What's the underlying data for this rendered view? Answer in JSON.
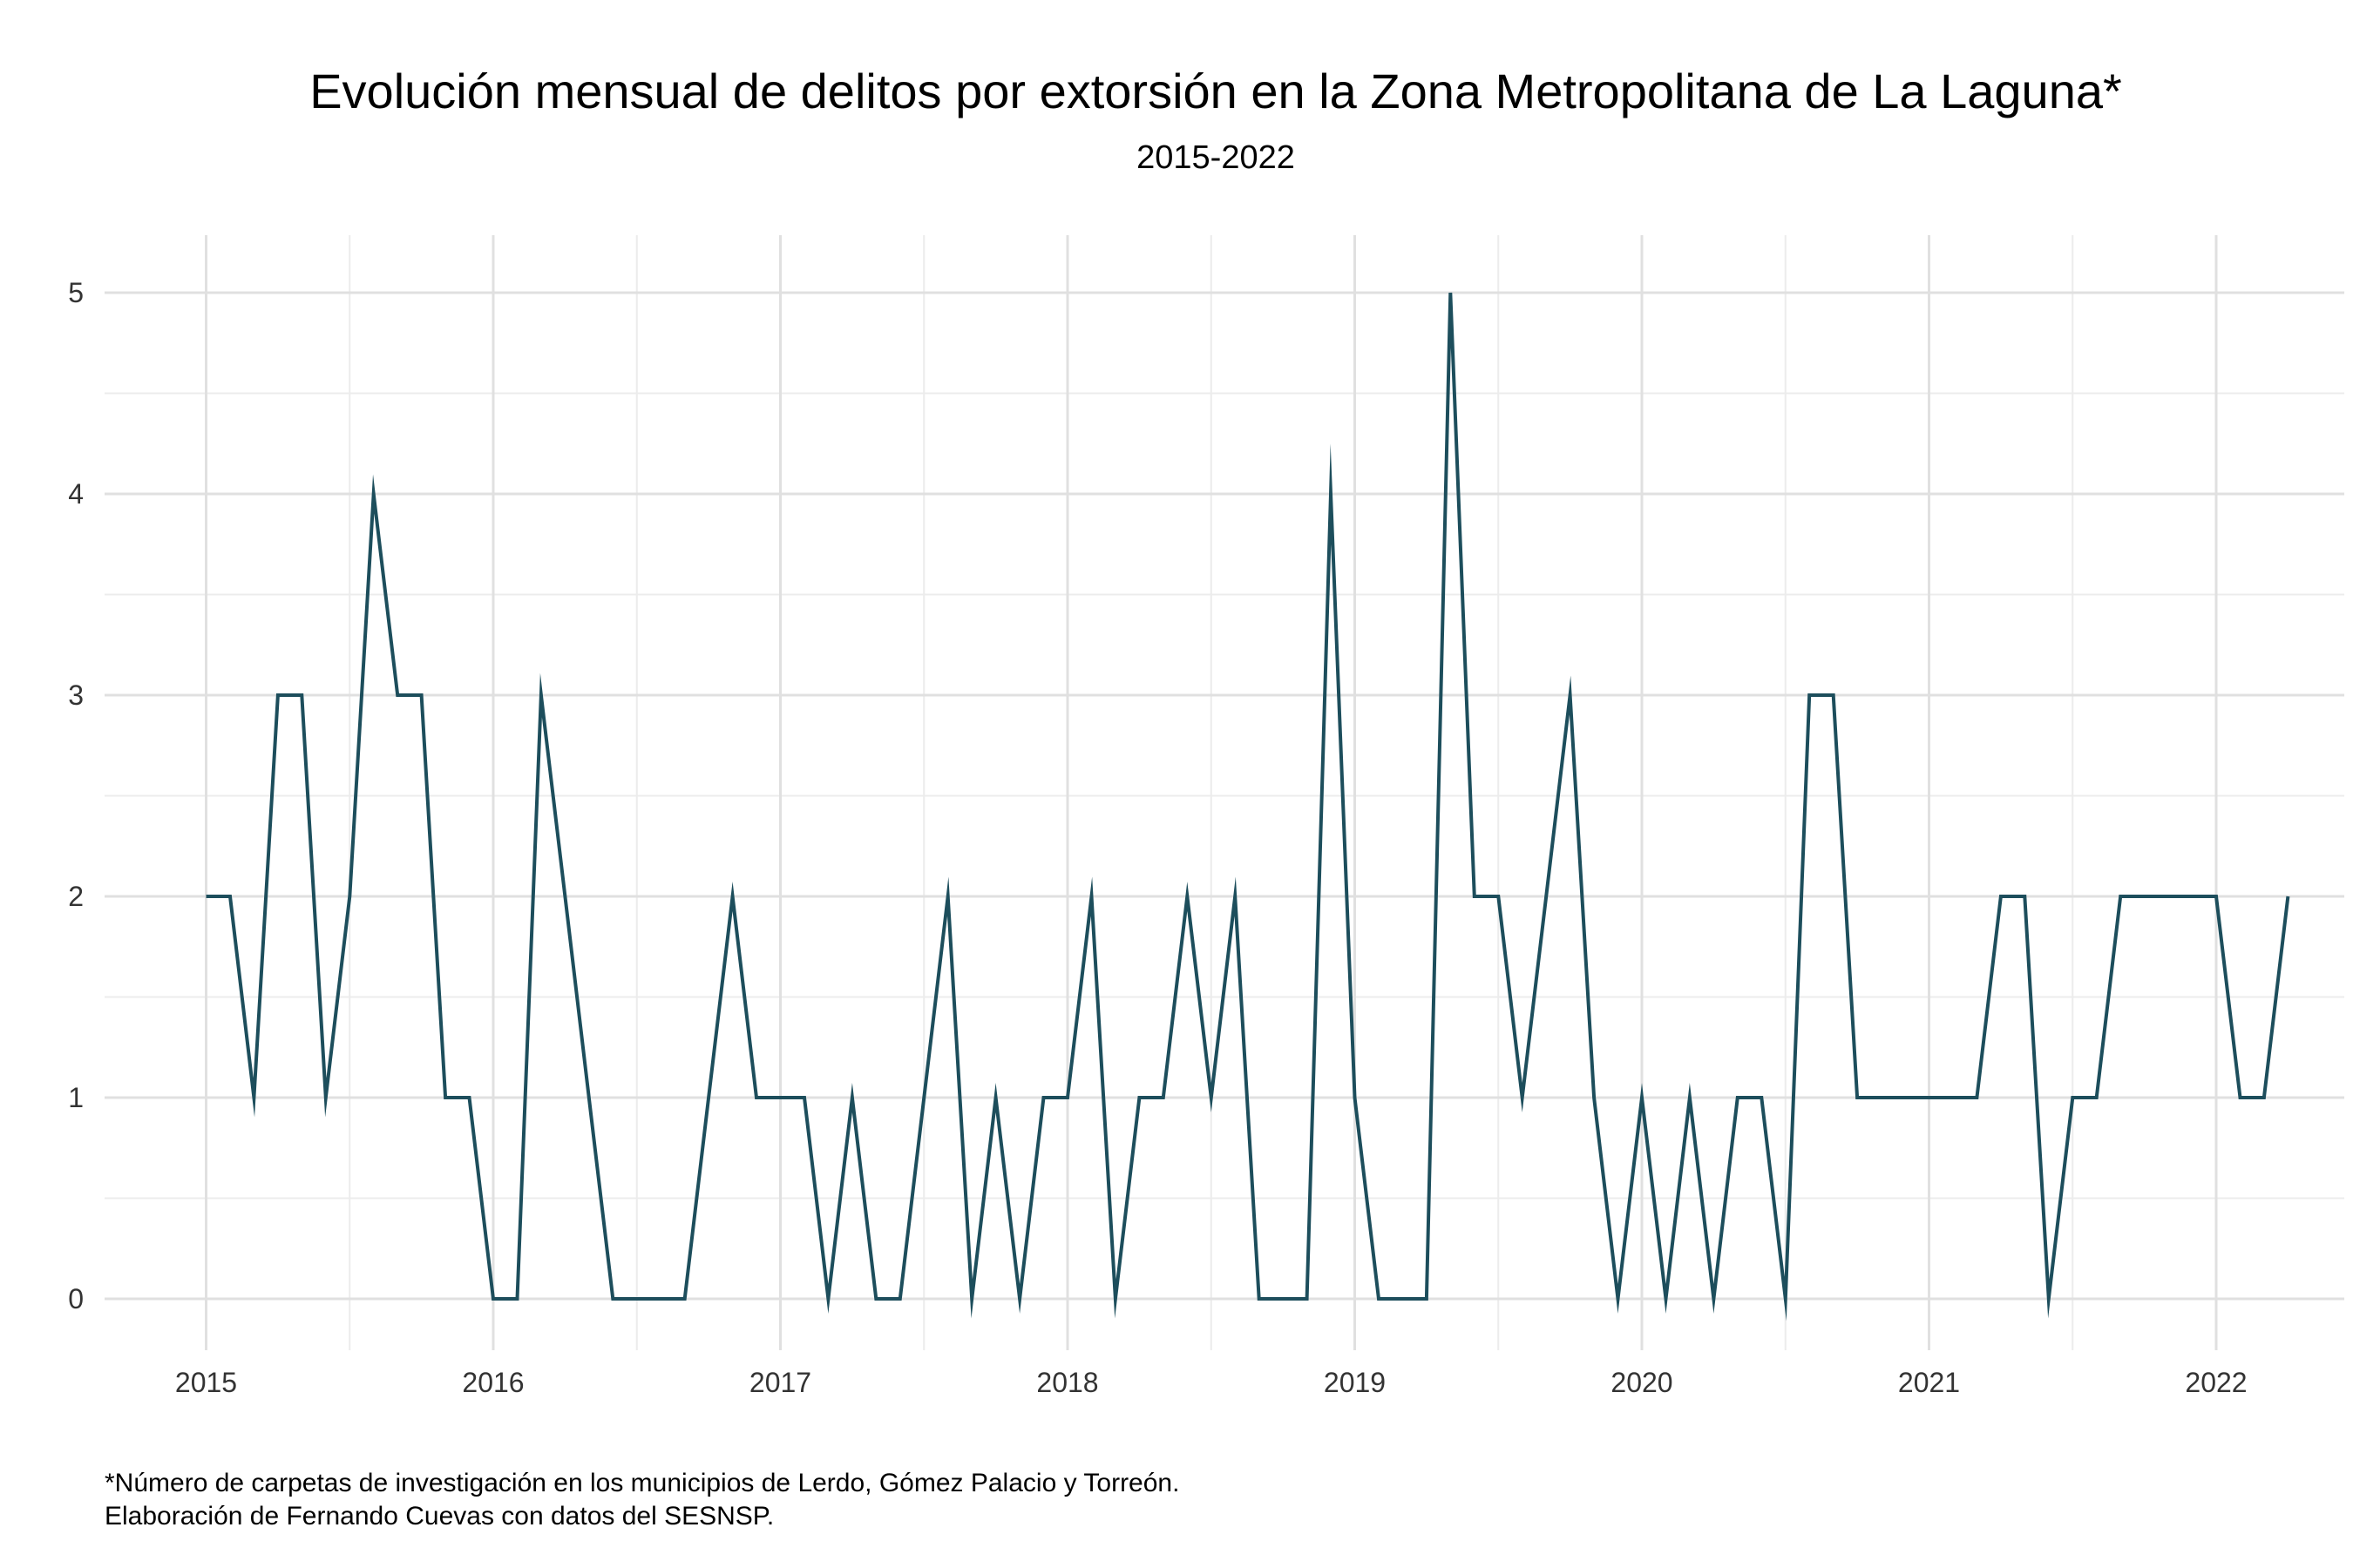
{
  "chart_data": {
    "type": "line",
    "title": "Evolución mensual de delitos por extorsión en la Zona Metropolitana de La Laguna*",
    "subtitle": "2015-2022",
    "xlabel": "",
    "ylabel": "",
    "x_start": "2015-01",
    "x_ticks": [
      "2015",
      "2016",
      "2017",
      "2018",
      "2019",
      "2020",
      "2021",
      "2022"
    ],
    "y_ticks": [
      "0",
      "1",
      "2",
      "3",
      "4",
      "5"
    ],
    "ylim": [
      0,
      5
    ],
    "grid": true,
    "legend": "none",
    "series": [
      {
        "color": "#1d4e5c",
        "values": [
          2,
          2,
          1,
          3,
          3,
          1,
          2,
          4,
          3,
          3,
          1,
          1,
          0,
          0,
          3,
          2,
          1,
          0,
          0,
          0,
          0,
          1,
          2,
          1,
          1,
          1,
          0,
          1,
          0,
          0,
          1,
          2,
          0,
          1,
          0,
          1,
          1,
          2,
          0,
          1,
          1,
          2,
          1,
          2,
          0,
          0,
          0,
          4,
          1,
          0,
          0,
          0,
          5,
          2,
          2,
          1,
          2,
          3,
          1,
          0,
          1,
          0,
          1,
          0,
          1,
          1,
          0,
          3,
          3,
          1,
          1,
          1,
          1,
          1,
          1,
          2,
          2,
          0,
          1,
          1,
          2,
          2,
          2,
          2,
          2,
          1,
          1,
          2
        ]
      }
    ]
  },
  "caption": {
    "line1": "*Número de carpetas de investigación en los municipios de Lerdo, Gómez Palacio y Torreón.",
    "line2": "Elaboración de Fernando Cuevas con datos del SESNSP."
  }
}
